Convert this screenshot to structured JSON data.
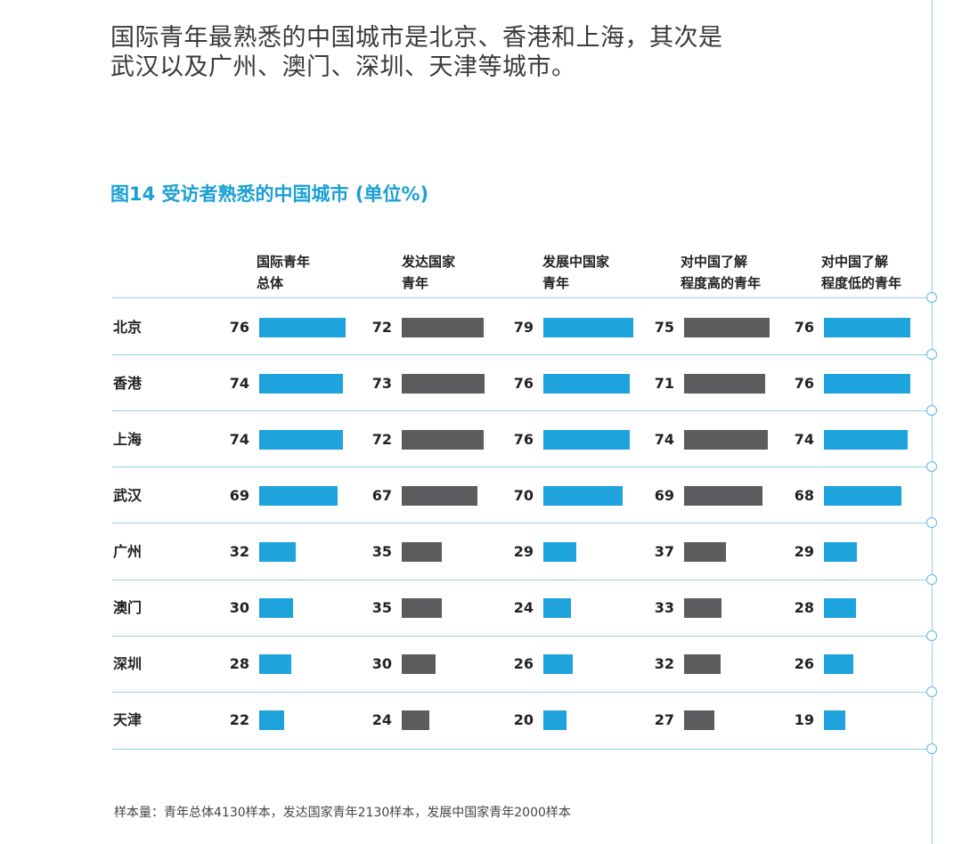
{
  "intro": {
    "line1": "国际青年最熟悉的中国城市是北京、香港和上海，其次是",
    "line2": "武汉以及广州、澳门、深圳、天津等城市。"
  },
  "colors": {
    "title": "#1aa0d4",
    "blue_bar": "#1fa3dc",
    "gray_bar": "#5c5c5e",
    "rule": "#8fcfe6"
  },
  "chart_data": {
    "type": "bar",
    "orientation": "horizontal",
    "title": "图14  受访者熟悉的中国城市 (单位%)",
    "categories": [
      "北京",
      "香港",
      "上海",
      "武汉",
      "广州",
      "澳门",
      "深圳",
      "天津"
    ],
    "series": [
      {
        "name": "国际青年总体",
        "name_lines": [
          "国际青年",
          "总体"
        ],
        "color": "#1fa3dc",
        "values": [
          76,
          74,
          74,
          69,
          32,
          30,
          28,
          22
        ]
      },
      {
        "name": "发达国家青年",
        "name_lines": [
          "发达国家",
          "青年"
        ],
        "color": "#5c5c5e",
        "values": [
          72,
          73,
          72,
          67,
          35,
          35,
          30,
          24
        ]
      },
      {
        "name": "发展中国家青年",
        "name_lines": [
          "发展中国家",
          "青年"
        ],
        "color": "#1fa3dc",
        "values": [
          79,
          76,
          76,
          70,
          29,
          24,
          26,
          20
        ]
      },
      {
        "name": "对中国了解程度高的青年",
        "name_lines": [
          "对中国了解",
          "程度高的青年"
        ],
        "color": "#5c5c5e",
        "values": [
          75,
          71,
          74,
          69,
          37,
          33,
          32,
          27
        ]
      },
      {
        "name": "对中国了解程度低的青年",
        "name_lines": [
          "对中国了解",
          "程度低的青年"
        ],
        "color": "#1fa3dc",
        "values": [
          76,
          76,
          74,
          68,
          29,
          28,
          26,
          19
        ]
      }
    ],
    "value_unit": "%",
    "grid": false,
    "legend": "column-headers"
  },
  "footnote": "样本量：青年总体4130样本，发达国家青年2130样本，发展中国家青年2000样本"
}
